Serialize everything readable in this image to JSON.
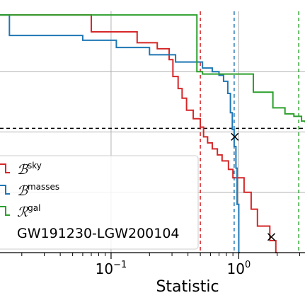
{
  "chart_data": {
    "type": "step",
    "xscale": "log",
    "xlim": [
      0.0135,
      3.3
    ],
    "ylim": [
      0.0,
      1.0
    ],
    "xlabel": "Statistic",
    "grid": true,
    "x_ticks": [
      {
        "value": 0.1,
        "base": "10",
        "exp": "−1"
      },
      {
        "value": 1.0,
        "base": "10",
        "exp": "0"
      }
    ],
    "threshold_y": 0.515,
    "legend_placement": "lower-left",
    "annotation": "GW191230-LGW200104",
    "series": [
      {
        "name": "sky",
        "color": "#d62728",
        "steps": [
          [
            0.0135,
            0.985
          ],
          [
            0.032,
            0.985
          ],
          [
            0.07,
            0.915
          ],
          [
            0.16,
            0.87
          ],
          [
            0.23,
            0.845
          ],
          [
            0.285,
            0.8
          ],
          [
            0.305,
            0.73
          ],
          [
            0.335,
            0.68
          ],
          [
            0.36,
            0.64
          ],
          [
            0.39,
            0.59
          ],
          [
            0.44,
            0.555
          ],
          [
            0.5,
            0.52
          ],
          [
            0.53,
            0.48
          ],
          [
            0.57,
            0.455
          ],
          [
            0.62,
            0.43
          ],
          [
            0.68,
            0.405
          ],
          [
            0.74,
            0.38
          ],
          [
            0.83,
            0.345
          ],
          [
            0.9,
            0.31
          ],
          [
            1.1,
            0.25
          ],
          [
            1.25,
            0.18
          ],
          [
            1.4,
            0.11
          ],
          [
            1.75,
            0.05
          ],
          [
            1.95,
            0.0
          ]
        ],
        "cross": [
          1.8,
          0.065
        ],
        "vline": 0.5
      },
      {
        "name": "masses",
        "color": "#1f77b4",
        "steps": [
          [
            0.0135,
            0.985
          ],
          [
            0.016,
            0.9
          ],
          [
            0.06,
            0.88
          ],
          [
            0.11,
            0.85
          ],
          [
            0.2,
            0.82
          ],
          [
            0.32,
            0.79
          ],
          [
            0.52,
            0.765
          ],
          [
            0.62,
            0.75
          ],
          [
            0.7,
            0.735
          ],
          [
            0.76,
            0.71
          ],
          [
            0.82,
            0.66
          ],
          [
            0.86,
            0.58
          ],
          [
            0.89,
            0.51
          ],
          [
            0.92,
            0.44
          ],
          [
            0.95,
            0.35
          ],
          [
            0.97,
            0.2
          ],
          [
            1.0,
            0.0
          ]
        ],
        "cross": [
          0.93,
          0.48
        ],
        "vline": 0.92
      },
      {
        "name": "gal",
        "color": "#2ca02c",
        "steps": [
          [
            0.0135,
            0.985
          ],
          [
            0.34,
            0.985
          ],
          [
            0.47,
            0.75
          ],
          [
            0.52,
            0.74
          ],
          [
            1.0,
            0.74
          ],
          [
            1.3,
            0.665
          ],
          [
            1.85,
            0.6
          ],
          [
            2.3,
            0.575
          ],
          [
            2.7,
            0.565
          ],
          [
            3.1,
            0.545
          ],
          [
            3.3,
            0.54
          ]
        ],
        "vline": 2.95
      }
    ]
  }
}
